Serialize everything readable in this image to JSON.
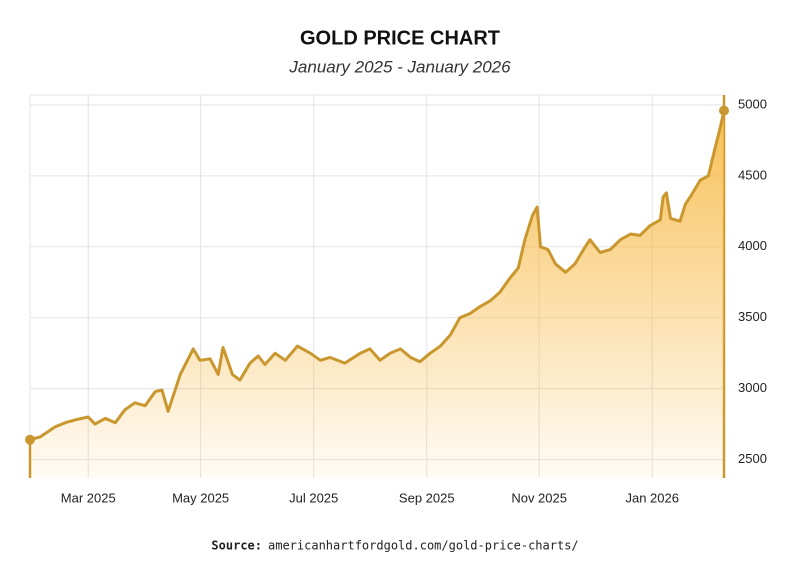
{
  "chart_data": {
    "type": "area",
    "title": "GOLD PRICE CHART",
    "subtitle": "January 2025 - January 2026",
    "source_label": "Source:",
    "source": "americanhartfordgold.com/gold-price-charts/",
    "color": "#c9972e",
    "fill_color": "#f7b944",
    "grid": true,
    "y_axis_side": "right",
    "x": [
      2025.081,
      2025.096,
      2025.118,
      2025.133,
      2025.148,
      2025.167,
      2025.177,
      2025.192,
      2025.207,
      2025.221,
      2025.236,
      2025.251,
      2025.266,
      2025.276,
      2025.285,
      2025.303,
      2025.322,
      2025.332,
      2025.347,
      2025.359,
      2025.366,
      2025.38,
      2025.391,
      2025.406,
      2025.418,
      2025.428,
      2025.443,
      2025.458,
      2025.476,
      2025.495,
      2025.51,
      2025.524,
      2025.546,
      2025.569,
      2025.583,
      2025.598,
      2025.613,
      2025.628,
      2025.643,
      2025.657,
      2025.672,
      2025.687,
      2025.702,
      2025.716,
      2025.731,
      2025.746,
      2025.761,
      2025.775,
      2025.79,
      2025.802,
      2025.812,
      2025.823,
      2025.83,
      2025.835,
      2025.846,
      2025.857,
      2025.872,
      2025.886,
      2025.901,
      2025.908,
      2025.923,
      2025.938,
      2025.953,
      2025.968,
      2025.982,
      2025.997,
      2026.012,
      2026.016,
      2026.021,
      2026.027,
      2026.041,
      2026.049,
      2026.056,
      2026.071,
      2026.083,
      2026.093,
      2026.101,
      2026.106
    ],
    "values": [
      2640,
      2660,
      2730,
      2760,
      2780,
      2800,
      2750,
      2790,
      2760,
      2850,
      2900,
      2880,
      2980,
      2990,
      2840,
      3100,
      3280,
      3200,
      3210,
      3100,
      3290,
      3100,
      3060,
      3180,
      3230,
      3170,
      3250,
      3200,
      3300,
      3250,
      3200,
      3220,
      3180,
      3250,
      3280,
      3200,
      3250,
      3280,
      3220,
      3190,
      3250,
      3300,
      3380,
      3500,
      3530,
      3580,
      3620,
      3680,
      3780,
      3850,
      4050,
      4220,
      4280,
      4000,
      3980,
      3880,
      3820,
      3880,
      4000,
      4050,
      3960,
      3980,
      4050,
      4090,
      4080,
      4150,
      4190,
      4350,
      4380,
      4200,
      4180,
      4300,
      4350,
      4470,
      4500,
      4700,
      4850,
      4960
    ],
    "xlim": [
      2025.081,
      2026.106
    ],
    "xticks": [
      {
        "value": 2025.167,
        "label": "Mar 2025"
      },
      {
        "value": 2025.333,
        "label": "May 2025"
      },
      {
        "value": 2025.5,
        "label": "Jul 2025"
      },
      {
        "value": 2025.667,
        "label": "Sep 2025"
      },
      {
        "value": 2025.833,
        "label": "Nov 2025"
      },
      {
        "value": 2026.0,
        "label": "Jan 2026"
      }
    ],
    "ylim": [
      2370,
      5070
    ],
    "yticks": [
      2500,
      3000,
      3500,
      4000,
      4500,
      5000
    ]
  }
}
